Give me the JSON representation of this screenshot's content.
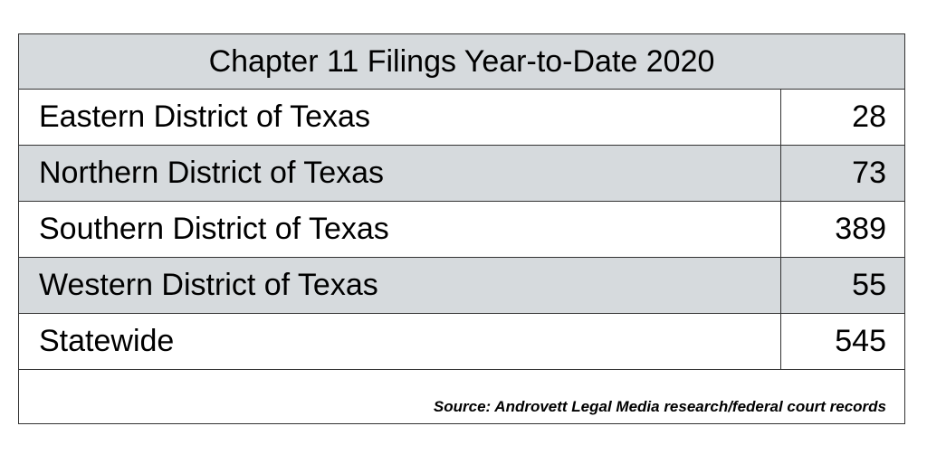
{
  "chart_data": {
    "type": "table",
    "title": "Chapter 11 Filings Year-to-Date 2020",
    "rows": [
      {
        "label": "Eastern District of Texas",
        "value": "28"
      },
      {
        "label": "Northern District of Texas",
        "value": "73"
      },
      {
        "label": "Southern District of Texas",
        "value": "389"
      },
      {
        "label": "Western District of Texas",
        "value": "55"
      },
      {
        "label": "Statewide",
        "value": "545"
      }
    ],
    "source": "Source: Androvett Legal Media research/federal court records"
  },
  "colors": {
    "shaded_row": "#d6dadd",
    "border": "#333333",
    "text": "#000000"
  }
}
